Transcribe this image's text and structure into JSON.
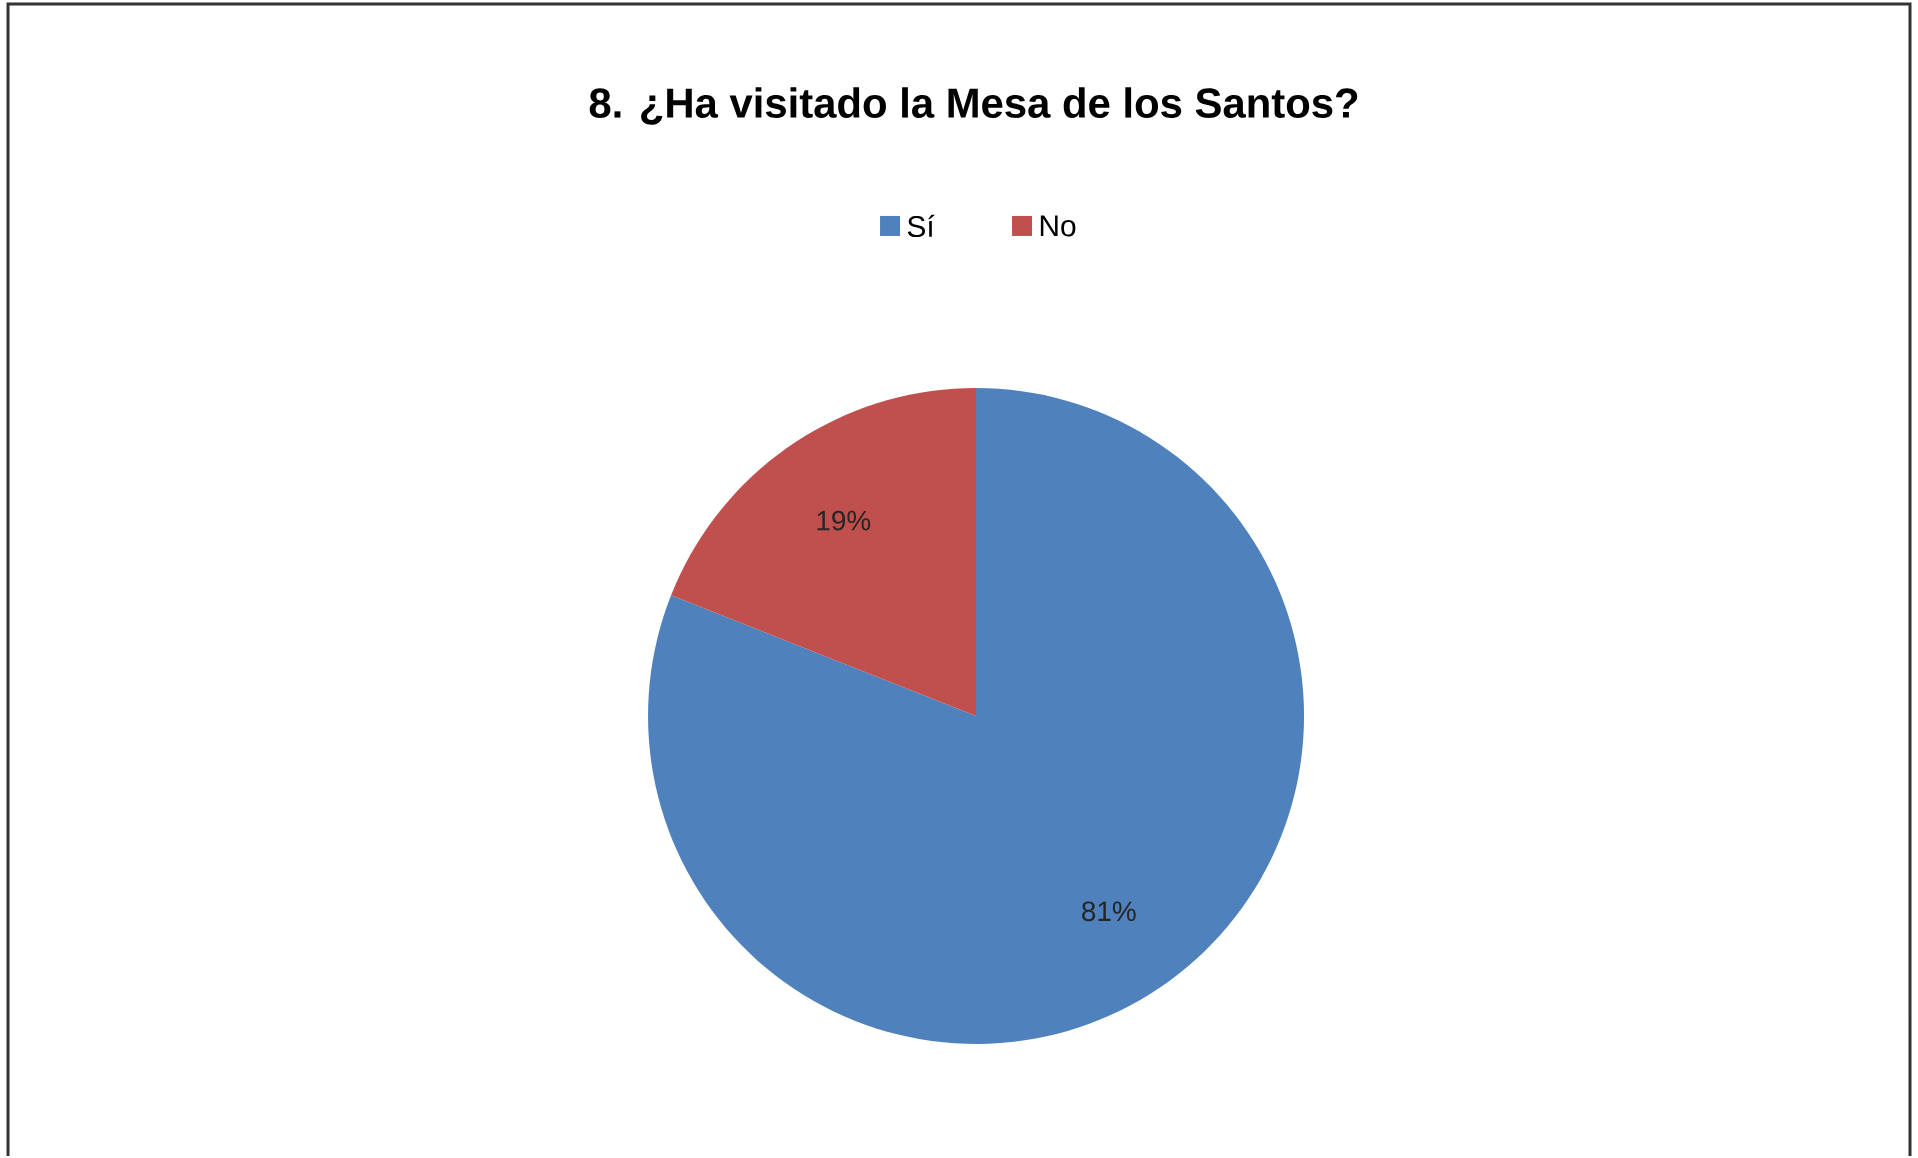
{
  "chart_data": {
    "type": "pie",
    "title": "8. ¿Ha visitado la Mesa de los Santos?",
    "categories": [
      "Sí",
      "No"
    ],
    "values": [
      81,
      19
    ],
    "colors": [
      "#4f81bd",
      "#c0504d"
    ],
    "value_labels": [
      "81%",
      "19%"
    ],
    "legend": "top"
  }
}
